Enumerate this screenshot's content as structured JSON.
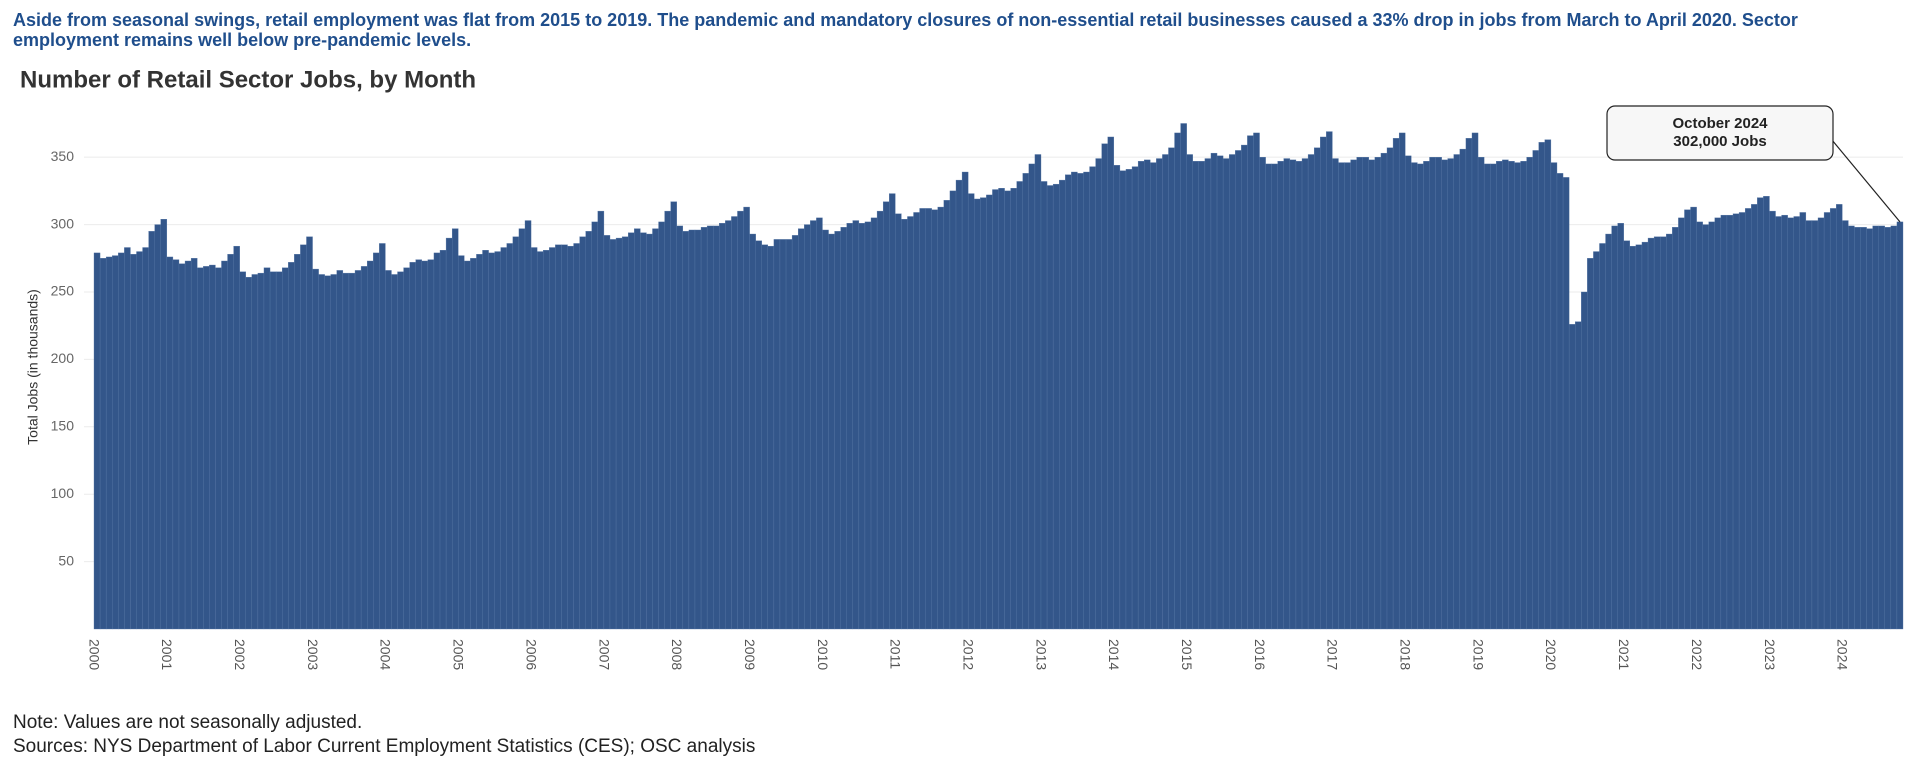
{
  "chart_data": {
    "type": "bar",
    "subtitle": "Aside from seasonal swings, retail employment was flat from 2015 to 2019. The pandemic and mandatory closures of non-essential retail businesses caused a 33% drop in jobs from March to April 2020. Sector employment remains well below pre-pandemic levels.",
    "title": "Number of Retail Sector Jobs, by Month",
    "y_label": "Total Jobs (in thousands)",
    "annotation": [
      "October 2024",
      "302,000 Jobs"
    ],
    "notes": [
      "Note: Values are not seasonally adjusted.",
      "Sources: NYS Department of Labor Current Employment Statistics (CES); OSC analysis"
    ],
    "color": "#33568a",
    "grid": true,
    "ylim": [
      0,
      385
    ],
    "yticks": [
      50,
      100,
      150,
      200,
      250,
      300,
      350
    ],
    "categories": [
      "2000",
      null,
      null,
      null,
      null,
      null,
      null,
      null,
      null,
      null,
      null,
      null,
      "2001",
      null,
      null,
      null,
      null,
      null,
      null,
      null,
      null,
      null,
      null,
      null,
      "2002",
      null,
      null,
      null,
      null,
      null,
      null,
      null,
      null,
      null,
      null,
      null,
      "2003",
      null,
      null,
      null,
      null,
      null,
      null,
      null,
      null,
      null,
      null,
      null,
      "2004",
      null,
      null,
      null,
      null,
      null,
      null,
      null,
      null,
      null,
      null,
      null,
      "2005",
      null,
      null,
      null,
      null,
      null,
      null,
      null,
      null,
      null,
      null,
      null,
      "2006",
      null,
      null,
      null,
      null,
      null,
      null,
      null,
      null,
      null,
      null,
      null,
      "2007",
      null,
      null,
      null,
      null,
      null,
      null,
      null,
      null,
      null,
      null,
      null,
      "2008",
      null,
      null,
      null,
      null,
      null,
      null,
      null,
      null,
      null,
      null,
      null,
      "2009",
      null,
      null,
      null,
      null,
      null,
      null,
      null,
      null,
      null,
      null,
      null,
      "2010",
      null,
      null,
      null,
      null,
      null,
      null,
      null,
      null,
      null,
      null,
      null,
      "2011",
      null,
      null,
      null,
      null,
      null,
      null,
      null,
      null,
      null,
      null,
      null,
      "2012",
      null,
      null,
      null,
      null,
      null,
      null,
      null,
      null,
      null,
      null,
      null,
      "2013",
      null,
      null,
      null,
      null,
      null,
      null,
      null,
      null,
      null,
      null,
      null,
      "2014",
      null,
      null,
      null,
      null,
      null,
      null,
      null,
      null,
      null,
      null,
      null,
      "2015",
      null,
      null,
      null,
      null,
      null,
      null,
      null,
      null,
      null,
      null,
      null,
      "2016",
      null,
      null,
      null,
      null,
      null,
      null,
      null,
      null,
      null,
      null,
      null,
      "2017",
      null,
      null,
      null,
      null,
      null,
      null,
      null,
      null,
      null,
      null,
      null,
      "2018",
      null,
      null,
      null,
      null,
      null,
      null,
      null,
      null,
      null,
      null,
      null,
      "2019",
      null,
      null,
      null,
      null,
      null,
      null,
      null,
      null,
      null,
      null,
      null,
      "2020",
      null,
      null,
      null,
      null,
      null,
      null,
      null,
      null,
      null,
      null,
      null,
      "2021",
      null,
      null,
      null,
      null,
      null,
      null,
      null,
      null,
      null,
      null,
      null,
      "2022",
      null,
      null,
      null,
      null,
      null,
      null,
      null,
      null,
      null,
      null,
      null,
      "2023",
      null,
      null,
      null,
      null,
      null,
      null,
      null,
      null,
      null,
      null,
      null,
      "2024",
      null,
      null,
      null,
      null,
      null,
      null,
      null,
      null,
      null
    ],
    "values": [
      279,
      275,
      276,
      277,
      279,
      283,
      278,
      280,
      283,
      295,
      300,
      304,
      276,
      274,
      271,
      273,
      275,
      268,
      269,
      270,
      268,
      273,
      278,
      284,
      265,
      261,
      263,
      264,
      268,
      265,
      265,
      268,
      272,
      278,
      285,
      291,
      267,
      263,
      262,
      263,
      266,
      264,
      264,
      266,
      269,
      273,
      279,
      286,
      266,
      263,
      265,
      268,
      272,
      274,
      273,
      274,
      279,
      281,
      290,
      297,
      277,
      273,
      275,
      278,
      281,
      279,
      280,
      283,
      286,
      291,
      297,
      303,
      283,
      280,
      281,
      283,
      285,
      285,
      284,
      286,
      291,
      295,
      302,
      310,
      292,
      289,
      290,
      291,
      294,
      297,
      294,
      293,
      297,
      302,
      310,
      317,
      299,
      295,
      296,
      296,
      298,
      299,
      299,
      301,
      303,
      306,
      310,
      313,
      293,
      288,
      285,
      284,
      289,
      289,
      289,
      292,
      297,
      300,
      303,
      305,
      296,
      293,
      295,
      298,
      301,
      303,
      301,
      302,
      305,
      310,
      317,
      323,
      308,
      304,
      306,
      309,
      312,
      312,
      311,
      313,
      318,
      325,
      333,
      339,
      323,
      319,
      320,
      322,
      326,
      327,
      325,
      327,
      332,
      338,
      345,
      352,
      332,
      329,
      330,
      333,
      337,
      339,
      338,
      339,
      343,
      349,
      360,
      365,
      344,
      340,
      341,
      343,
      347,
      348,
      346,
      349,
      352,
      357,
      368,
      375,
      352,
      347,
      347,
      349,
      353,
      351,
      349,
      352,
      355,
      359,
      366,
      368,
      350,
      345,
      345,
      347,
      349,
      348,
      347,
      349,
      352,
      357,
      365,
      369,
      349,
      346,
      346,
      348,
      350,
      350,
      348,
      350,
      353,
      357,
      364,
      368,
      351,
      346,
      345,
      347,
      350,
      350,
      348,
      349,
      352,
      356,
      364,
      368,
      350,
      345,
      345,
      347,
      348,
      347,
      346,
      347,
      350,
      355,
      361,
      363,
      346,
      338,
      335,
      226,
      228,
      250,
      275,
      280,
      286,
      293,
      299,
      301,
      288,
      284,
      285,
      287,
      290,
      291,
      291,
      293,
      298,
      305,
      311,
      313,
      302,
      300,
      302,
      305,
      307,
      307,
      308,
      309,
      312,
      315,
      320,
      321,
      310,
      306,
      307,
      305,
      306,
      309,
      303,
      303,
      305,
      309,
      312,
      315,
      303,
      299,
      298,
      298,
      297,
      299,
      299,
      298,
      299,
      302
    ]
  }
}
